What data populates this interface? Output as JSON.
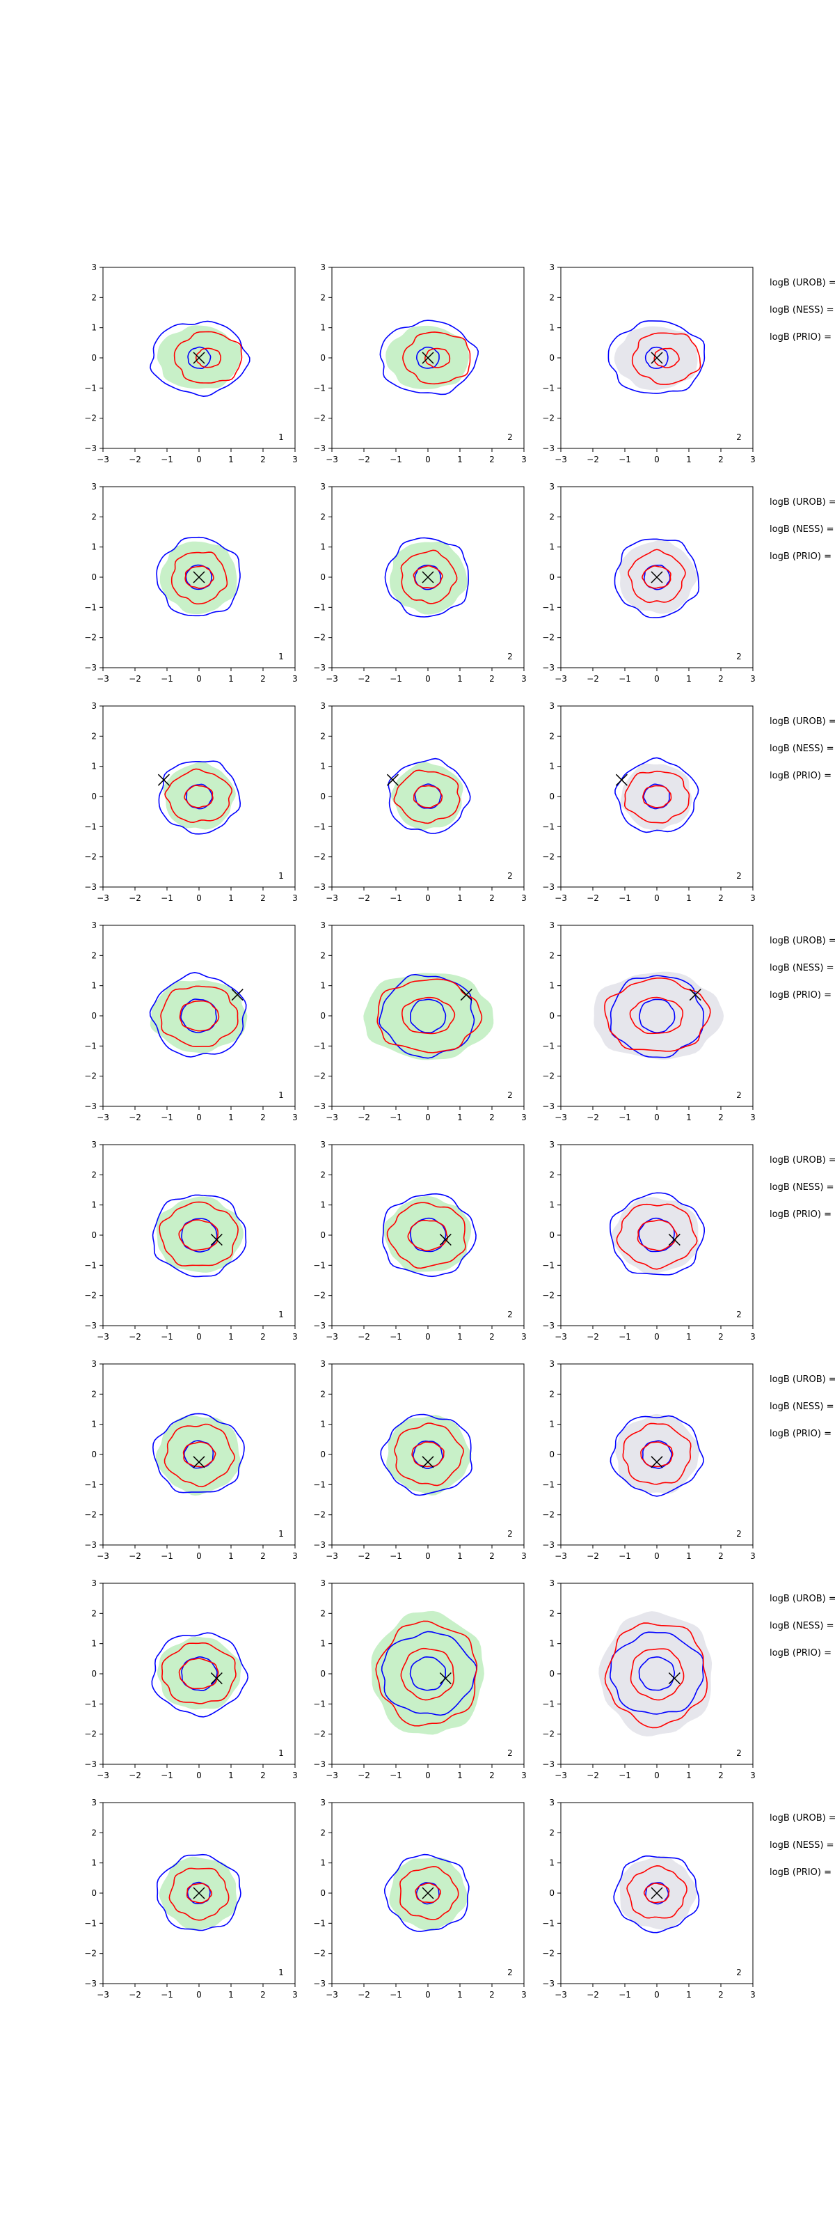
{
  "chart_data": {
    "type": "contour",
    "layout": {
      "rows": 8,
      "cols": 3
    },
    "xlim": [
      -3,
      3
    ],
    "ylim": [
      -3,
      3
    ],
    "xticks": [
      -3,
      -2,
      -1,
      0,
      1,
      2,
      3
    ],
    "yticks": [
      -3,
      -2,
      -1,
      0,
      1,
      2,
      3
    ],
    "colors": {
      "blue_contour": "#0000ff",
      "red_contour": "#ff0000",
      "fill_green": "#c8f0c8",
      "fill_gray": "#e6e6ec",
      "marker": "#000000"
    },
    "column_fill": [
      "green",
      "green",
      "gray"
    ],
    "column_panel_labels": [
      "1",
      "2",
      "2"
    ],
    "side_labels": [
      "logB (UROB) =",
      "logB (NESS) =",
      "logB (PRIO) ="
    ],
    "rows": [
      {
        "marker": [
          0.0,
          0.0
        ],
        "shift": [
          0.3,
          0.0
        ],
        "inner": [
          0.35,
          0.35
        ],
        "mid": [
          1.05,
          0.85
        ],
        "outer": [
          1.5,
          1.2
        ],
        "fill": [
          1.3,
          1.05
        ],
        "spread": [
          1.0,
          1.0
        ]
      },
      {
        "marker": [
          0.0,
          0.0
        ],
        "shift": [
          0.0,
          0.0
        ],
        "inner": [
          0.4,
          0.4
        ],
        "mid": [
          0.85,
          0.85
        ],
        "outer": [
          1.3,
          1.3
        ],
        "fill": [
          1.2,
          1.2
        ],
        "spread": [
          1.0,
          1.0
        ]
      },
      {
        "marker": [
          -1.1,
          0.55
        ],
        "shift": [
          0.0,
          0.0
        ],
        "inner": [
          0.4,
          0.4
        ],
        "mid": [
          1.0,
          0.85
        ],
        "outer": [
          1.25,
          1.2
        ],
        "fill": [
          1.1,
          1.1
        ],
        "spread": [
          1.0,
          1.0
        ]
      },
      {
        "marker": [
          1.2,
          0.7
        ],
        "shift": [
          0.0,
          0.0
        ],
        "inner": [
          0.55,
          0.55
        ],
        "mid": [
          1.2,
          1.0
        ],
        "outer": [
          1.45,
          1.35
        ],
        "fill": [
          1.5,
          1.2
        ],
        "spread": [
          1.35,
          1.2
        ]
      },
      {
        "marker": [
          0.55,
          -0.15
        ],
        "shift": [
          0.0,
          0.0
        ],
        "inner": [
          0.55,
          0.55
        ],
        "mid": [
          1.2,
          1.05
        ],
        "outer": [
          1.45,
          1.35
        ],
        "fill": [
          1.35,
          1.25
        ],
        "spread": [
          1.0,
          1.0
        ]
      },
      {
        "marker": [
          0.0,
          -0.25
        ],
        "shift": [
          0.0,
          0.0
        ],
        "inner": [
          0.45,
          0.45
        ],
        "mid": [
          1.05,
          1.0
        ],
        "outer": [
          1.4,
          1.3
        ],
        "fill": [
          1.3,
          1.3
        ],
        "spread": [
          1.0,
          1.0
        ]
      },
      {
        "marker": [
          0.55,
          -0.15
        ],
        "shift": [
          0.0,
          0.0
        ],
        "inner": [
          0.55,
          0.55
        ],
        "mid": [
          1.15,
          1.0
        ],
        "outer": [
          1.45,
          1.35
        ],
        "fill": [
          1.3,
          1.2
        ],
        "spread": [
          1.35,
          1.7
        ]
      },
      {
        "marker": [
          0.0,
          0.0
        ],
        "shift": [
          0.0,
          0.0
        ],
        "inner": [
          0.35,
          0.35
        ],
        "mid": [
          0.9,
          0.85
        ],
        "outer": [
          1.3,
          1.25
        ],
        "fill": [
          1.2,
          1.2
        ],
        "spread": [
          1.0,
          1.0
        ]
      }
    ]
  }
}
